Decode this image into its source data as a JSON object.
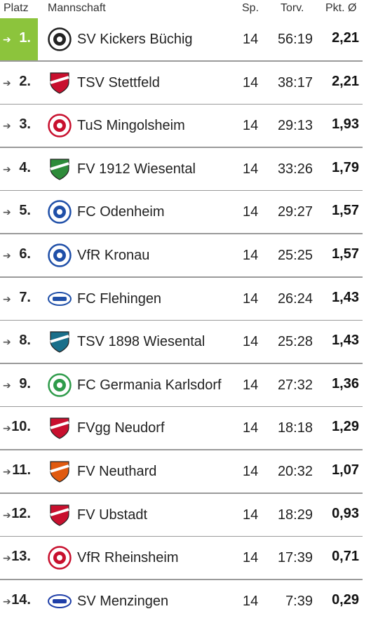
{
  "header": {
    "platz": "Platz",
    "mannschaft": "Mannschaft",
    "sp": "Sp.",
    "torv": "Torv.",
    "pkt": "Pkt. Ø"
  },
  "colors": {
    "leader_green": "#8cc43c",
    "separator": "#9a9a9a"
  },
  "rows": [
    {
      "rank": "1.",
      "team": "SV Kickers Büchig",
      "sp": "14",
      "torv": "56:19",
      "pkt": "2,21",
      "crest": "kickers-buechig-crest-icon",
      "accent": "#222222"
    },
    {
      "rank": "2.",
      "team": "TSV Stettfeld",
      "sp": "14",
      "torv": "38:17",
      "pkt": "2,21",
      "crest": "tsv-stettfeld-crest-icon",
      "accent": "#c8102e"
    },
    {
      "rank": "3.",
      "team": "TuS Mingolsheim",
      "sp": "14",
      "torv": "29:13",
      "pkt": "1,93",
      "crest": "tus-mingolsheim-crest-icon",
      "accent": "#c8102e"
    },
    {
      "rank": "4.",
      "team": "FV 1912 Wiesental",
      "sp": "14",
      "torv": "33:26",
      "pkt": "1,79",
      "crest": "fv-wiesental-crest-icon",
      "accent": "#2e8b3a"
    },
    {
      "rank": "5.",
      "team": "FC Odenheim",
      "sp": "14",
      "torv": "29:27",
      "pkt": "1,57",
      "crest": "fc-odenheim-crest-icon",
      "accent": "#1f4fa8"
    },
    {
      "rank": "6.",
      "team": "VfR Kronau",
      "sp": "14",
      "torv": "25:25",
      "pkt": "1,57",
      "crest": "vfr-kronau-crest-icon",
      "accent": "#1f4fa8"
    },
    {
      "rank": "7.",
      "team": "FC Flehingen",
      "sp": "14",
      "torv": "26:24",
      "pkt": "1,43",
      "crest": "fc-flehingen-crest-icon",
      "accent": "#1f4fa8"
    },
    {
      "rank": "8.",
      "team": "TSV 1898 Wiesental",
      "sp": "14",
      "torv": "25:28",
      "pkt": "1,43",
      "crest": "tsv-wiesental-crest-icon",
      "accent": "#1a6f8a"
    },
    {
      "rank": "9.",
      "team": "FC Germania Karlsdorf",
      "sp": "14",
      "torv": "27:32",
      "pkt": "1,36",
      "crest": "fc-karlsdorf-crest-icon",
      "accent": "#2e9b4a"
    },
    {
      "rank": "10.",
      "team": "FVgg Neudorf",
      "sp": "14",
      "torv": "18:18",
      "pkt": "1,29",
      "crest": "fvgg-neudorf-crest-icon",
      "accent": "#c8102e"
    },
    {
      "rank": "11.",
      "team": "FV Neuthard",
      "sp": "14",
      "torv": "20:32",
      "pkt": "1,07",
      "crest": "fv-neuthard-crest-icon",
      "accent": "#e05a10"
    },
    {
      "rank": "12.",
      "team": "FV Ubstadt",
      "sp": "14",
      "torv": "18:29",
      "pkt": "0,93",
      "crest": "fv-ubstadt-crest-icon",
      "accent": "#c8102e"
    },
    {
      "rank": "13.",
      "team": "VfR Rheinsheim",
      "sp": "14",
      "torv": "17:39",
      "pkt": "0,71",
      "crest": "vfr-rheinsheim-crest-icon",
      "accent": "#c8102e"
    },
    {
      "rank": "14.",
      "team": "SV Menzingen",
      "sp": "14",
      "torv": "7:39",
      "pkt": "0,29",
      "crest": "sv-menzingen-crest-icon",
      "accent": "#1f3fa8"
    }
  ]
}
